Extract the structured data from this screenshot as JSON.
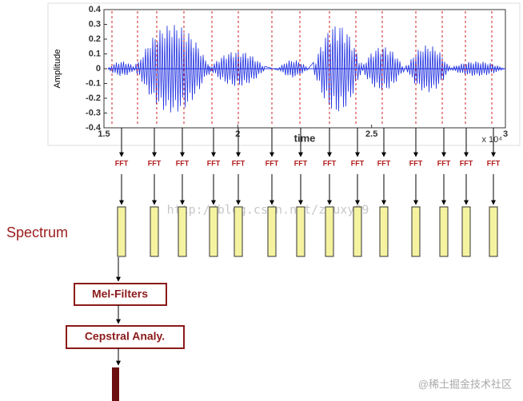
{
  "plot": {
    "y_label": "Amplitude",
    "x_label": "time",
    "x_multiplier": "x 10⁴",
    "yticks": [
      0.4,
      0.3,
      0.2,
      0.1,
      0,
      -0.1,
      -0.2,
      -0.3,
      -0.4
    ],
    "xticks": [
      1.5,
      2,
      2.5,
      3
    ]
  },
  "fft_blocks": [
    "FFT",
    "FFT",
    "FFT",
    "FFT",
    "FFT",
    "FFT",
    "FFT",
    "FFT",
    "FFT",
    "FFT",
    "FFT",
    "FFT",
    "FFT",
    "FFT"
  ],
  "spectrum_label": "Spectrum",
  "steps": [
    "Mel-Filters",
    "Cepstral Analy."
  ],
  "watermarks": [
    "http://blog.csdn.net/zouxy09",
    "@稀土掘金技术社区"
  ]
}
